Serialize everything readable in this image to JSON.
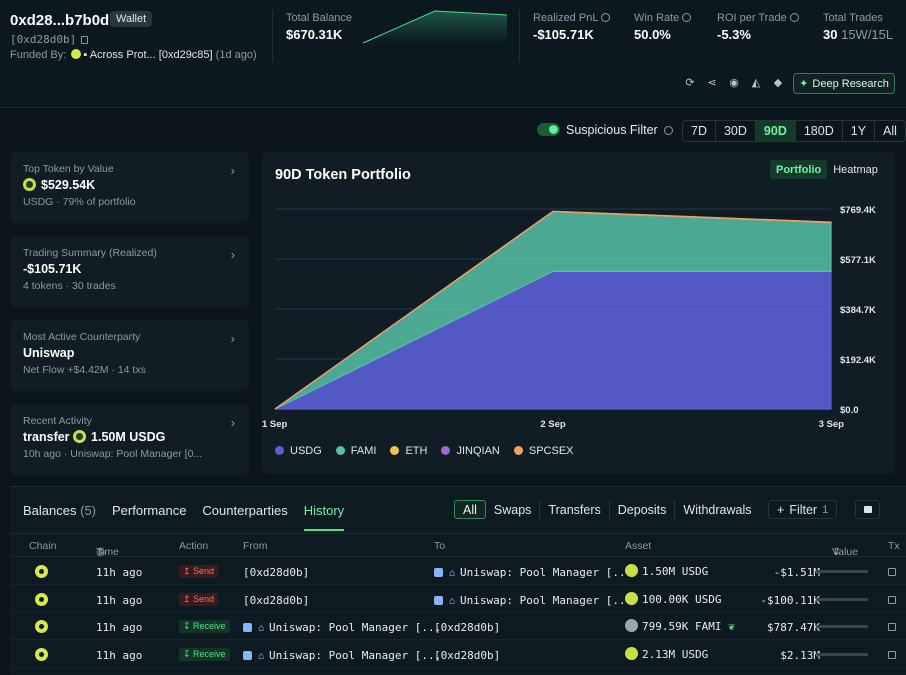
{
  "header": {
    "wallet_name": "0xd28...b7b0d",
    "wallet_badge": "Wallet",
    "address": "[0xd28d0b]",
    "funded_by_label": "Funded By:",
    "funded_by_source": "Across Prot...",
    "funded_by_addr": "[0xd29c85]",
    "funded_by_age": "(1d ago)",
    "total_balance_label": "Total Balance",
    "total_balance": "$670.31K",
    "realized_pnl_label": "Realized PnL",
    "realized_pnl": "-$105.71K",
    "win_rate_label": "Win Rate",
    "win_rate": "50.0%",
    "roi_label": "ROI per Trade",
    "roi": "-5.3%",
    "total_trades_label": "Total Trades",
    "total_trades": "30",
    "wl": "15W/15L",
    "deep_research": "Deep Research"
  },
  "filters": {
    "suspicious_label": "Suspicious Filter",
    "ranges": [
      "7D",
      "30D",
      "90D",
      "180D",
      "1Y",
      "All"
    ],
    "active_range": "90D"
  },
  "cards": [
    {
      "label": "Top Token by Value",
      "value": "$529.54K",
      "sub": "USDG · 79% of portfolio"
    },
    {
      "label": "Trading Summary (Realized)",
      "value": "-$105.71K",
      "sub": "4 tokens · 30 trades"
    },
    {
      "label": "Most Active Counterparty",
      "value": "Uniswap",
      "sub": "Net Flow +$4.42M · 14 txs"
    },
    {
      "label": "Recent Activity",
      "value_prefix": "transfer",
      "value": "1.50M USDG",
      "sub": "10h ago · Uniswap: Pool Manager [0..."
    }
  ],
  "chart_panel": {
    "title": "90D Token Portfolio",
    "view_portfolio": "Portfolio",
    "view_heatmap": "Heatmap"
  },
  "chart_data": {
    "type": "area",
    "x": [
      "1 Sep",
      "2 Sep",
      "3 Sep"
    ],
    "yticks": [
      "$0.0",
      "$192.4K",
      "$384.7K",
      "$577.1K",
      "$769.4K"
    ],
    "ylim": [
      0,
      769.4
    ],
    "stacked": true,
    "series": [
      {
        "name": "USDG",
        "color": "#5b5fd6",
        "values": [
          0,
          529.5,
          529.5
        ]
      },
      {
        "name": "FAMI",
        "color": "#56c2a7",
        "values": [
          0,
          229.5,
          187.5
        ]
      },
      {
        "name": "ETH",
        "color": "#f2c14e",
        "values": [
          0,
          0.5,
          0.5
        ]
      },
      {
        "name": "JINQIAN",
        "color": "#a06ad0",
        "values": [
          0,
          0.5,
          0.5
        ]
      },
      {
        "name": "SPCSEX",
        "color": "#f2a25e",
        "values": [
          0,
          1,
          1
        ]
      }
    ]
  },
  "bottom": {
    "tabs": [
      "Balances",
      "Performance",
      "Counterparties",
      "History"
    ],
    "balances_count": "(5)",
    "active_tab": "History",
    "history_tabs": [
      "All",
      "Swaps",
      "Transfers",
      "Deposits",
      "Withdrawals"
    ],
    "filter_label": "Filter",
    "filter_count": "1",
    "columns": [
      "Chain",
      "Time",
      "Action",
      "From",
      "To",
      "Asset",
      "Value",
      "Tx"
    ],
    "rows": [
      {
        "time": "11h ago",
        "action": "Send",
        "action_type": "send",
        "from": "[0xd28d0b]",
        "to": "Uniswap: Pool Manager [...",
        "asset": "1.50M USDG",
        "asset_icon": "usdg",
        "value": "-$1.51M",
        "bar": 0.85,
        "bar_color": "#f0706a"
      },
      {
        "time": "11h ago",
        "action": "Send",
        "action_type": "send",
        "from": "[0xd28d0b]",
        "to": "Uniswap: Pool Manager [...",
        "asset": "100.00K USDG",
        "asset_icon": "usdg",
        "value": "-$100.11K",
        "bar": 0.2,
        "bar_color": "#f0706a"
      },
      {
        "time": "11h ago",
        "action": "Receive",
        "action_type": "recv",
        "from": "Uniswap: Pool Manager [...",
        "to": "[0xd28d0b]",
        "asset": "799.59K FAMI",
        "asset_icon": "fami",
        "value": "$787.47K",
        "bar": 0.55,
        "bar_color": "#4ee08a"
      },
      {
        "time": "11h ago",
        "action": "Receive",
        "action_type": "recv",
        "from": "Uniswap: Pool Manager [...",
        "to": "[0xd28d0b]",
        "asset": "2.13M USDG",
        "asset_icon": "usdg",
        "value": "$2.13M",
        "bar": 1.0,
        "bar_color": "#4ee08a"
      }
    ]
  }
}
